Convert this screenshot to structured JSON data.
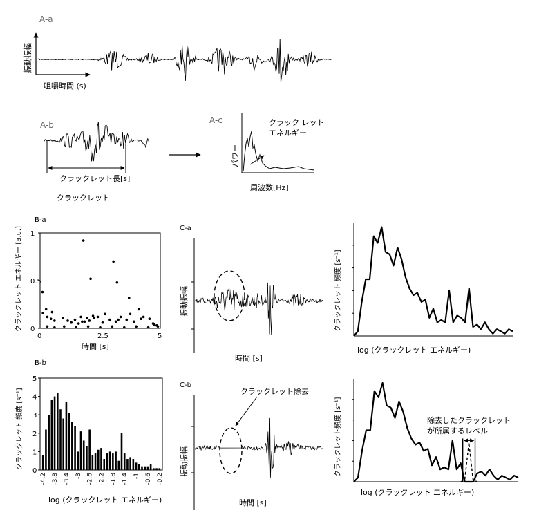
{
  "panels": {
    "Aa": {
      "label": "A-a",
      "ylabel": "振動振幅",
      "xlabel": "咀嚼時間 (s)"
    },
    "Ab": {
      "label": "A-b",
      "length_label": "クラックレット長[s]",
      "caption": "クラックレット"
    },
    "Ac": {
      "label": "A-c",
      "ylabel": "パワー",
      "xlabel": "周波数[Hz]",
      "annotation_line1": "クラック レット",
      "annotation_line2": "エネルギー"
    },
    "Ba": {
      "label": "B-a",
      "ylabel": "クラックレット エネルギー [a.u.]",
      "xlabel": "時間 [s]"
    },
    "Bb": {
      "label": "B-b",
      "ylabel": "クラックレット 頻度 [s⁻¹]",
      "xlabel": "log (クラックレット エネルギー)"
    },
    "Ca": {
      "label": "C-a",
      "ylabel": "振動振幅",
      "xlabel": "時間 [s]"
    },
    "Cb": {
      "label": "C-b",
      "ylabel": "振動振幅",
      "xlabel": "時間 [s]",
      "annotation": "クラックレット除去"
    },
    "Da": {
      "ylabel": "クラックレット 頻度 [s⁻¹]",
      "xlabel": "log (クラックレット エネルギー)"
    },
    "Db": {
      "ylabel": "クラックレット頻度 [s⁻¹]",
      "xlabel": "log (クラックレット エネルギー)",
      "annotation_line1": "除去したクラックレット",
      "annotation_line2": "が所属するレベル"
    }
  },
  "chart_data": [
    {
      "id": "B-a",
      "type": "scatter",
      "xlabel": "時間 [s]",
      "ylabel": "クラックレット エネルギー [a.u.]",
      "xlim": [
        0,
        5
      ],
      "ylim": [
        0,
        1
      ],
      "xticks": [
        "0",
        "2.5",
        "5"
      ],
      "yticks": [
        "0",
        "0.5",
        "1"
      ],
      "points": [
        [
          0.1,
          0.38
        ],
        [
          0.12,
          0.16
        ],
        [
          0.25,
          0.2
        ],
        [
          0.3,
          0.12
        ],
        [
          0.45,
          0.1
        ],
        [
          0.5,
          0.17
        ],
        [
          0.6,
          0.08
        ],
        [
          0.95,
          0.11
        ],
        [
          1.15,
          0.08
        ],
        [
          1.3,
          0.06
        ],
        [
          1.45,
          0.09
        ],
        [
          1.6,
          0.05
        ],
        [
          1.7,
          0.12
        ],
        [
          1.85,
          0.07
        ],
        [
          1.95,
          0.11
        ],
        [
          2.05,
          0.08
        ],
        [
          2.2,
          0.13
        ],
        [
          1.75,
          0.07
        ],
        [
          1.8,
          0.92
        ],
        [
          2.1,
          0.52
        ],
        [
          2.25,
          0.11
        ],
        [
          2.4,
          0.12
        ],
        [
          2.6,
          0.06
        ],
        [
          2.7,
          0.15
        ],
        [
          2.9,
          0.09
        ],
        [
          3.05,
          0.7
        ],
        [
          3.15,
          0.07
        ],
        [
          3.2,
          0.48
        ],
        [
          3.25,
          0.09
        ],
        [
          3.35,
          0.12
        ],
        [
          3.6,
          0.09
        ],
        [
          3.7,
          0.32
        ],
        [
          3.75,
          0.15
        ],
        [
          3.9,
          0.07
        ],
        [
          4.1,
          0.2
        ],
        [
          4.2,
          0.1
        ],
        [
          4.3,
          0.12
        ],
        [
          4.55,
          0.1
        ],
        [
          4.7,
          0.05
        ],
        [
          4.75,
          0.04
        ],
        [
          4.85,
          0.03
        ],
        [
          4.9,
          0.02
        ],
        [
          0.3,
          0.02
        ],
        [
          0.6,
          0.01
        ],
        [
          1.0,
          0.02
        ],
        [
          1.5,
          0.01
        ],
        [
          2.0,
          0.02
        ],
        [
          2.5,
          0.01
        ],
        [
          3.0,
          0.02
        ],
        [
          3.5,
          0.01
        ],
        [
          4.0,
          0.02
        ],
        [
          4.5,
          0.01
        ]
      ]
    },
    {
      "id": "B-b",
      "type": "bar",
      "xlabel": "log (クラックレット エネルギー)",
      "ylabel": "クラックレット 頻度 [s⁻¹]",
      "xlim": [
        -4.3,
        -0.1
      ],
      "ylim": [
        0,
        5
      ],
      "yticks": [
        "0",
        "1",
        "2",
        "3",
        "4",
        "5"
      ],
      "xticks": [
        "-4.2",
        "-3.8",
        "-3.4",
        "-3",
        "-2.6",
        "-2.2",
        "-1.8",
        "-1.4",
        "-1",
        "-0.6",
        "-0.2"
      ],
      "x": [
        -4.2,
        -4.1,
        -4.0,
        -3.9,
        -3.8,
        -3.7,
        -3.6,
        -3.5,
        -3.4,
        -3.3,
        -3.2,
        -3.1,
        -3.0,
        -2.9,
        -2.8,
        -2.7,
        -2.6,
        -2.5,
        -2.4,
        -2.3,
        -2.2,
        -2.1,
        -2.0,
        -1.9,
        -1.8,
        -1.7,
        -1.6,
        -1.5,
        -1.4,
        -1.3,
        -1.2,
        -1.1,
        -1.0,
        -0.9,
        -0.8,
        -0.7,
        -0.6,
        -0.5,
        -0.4,
        -0.3,
        -0.2
      ],
      "values": [
        0.8,
        2.2,
        3.0,
        3.8,
        4.0,
        4.2,
        3.3,
        2.8,
        3.7,
        3.1,
        2.6,
        2.4,
        1.0,
        2.1,
        1.6,
        1.3,
        2.2,
        0.8,
        0.9,
        1.1,
        1.2,
        0.6,
        0.9,
        1.0,
        0.9,
        1.0,
        0.5,
        2.0,
        0.9,
        0.6,
        0.7,
        0.6,
        0.4,
        0.3,
        0.2,
        0.2,
        0.2,
        0.3,
        0.1,
        0.1,
        0.1
      ]
    },
    {
      "id": "D-a",
      "type": "line",
      "xlabel": "log (クラックレット エネルギー)",
      "ylabel": "クラックレット 頻度 [s⁻¹]",
      "xlim": [
        0,
        40
      ],
      "ylim": [
        0,
        5
      ],
      "x": [
        0,
        1,
        2,
        3,
        4,
        5,
        6,
        7,
        8,
        9,
        10,
        11,
        12,
        13,
        14,
        15,
        16,
        17,
        18,
        19,
        20,
        21,
        22,
        23,
        24,
        25,
        26,
        27,
        28,
        29,
        30,
        31,
        32,
        33,
        34,
        35,
        36,
        37,
        38,
        39,
        40
      ],
      "values": [
        0,
        0.2,
        1.5,
        2.5,
        2.5,
        4.4,
        4.1,
        4.8,
        3.7,
        3.6,
        3.1,
        3.9,
        3.4,
        2.6,
        2.1,
        1.8,
        1.9,
        1.5,
        1.6,
        0.8,
        1.2,
        0.6,
        0.7,
        0.6,
        2.0,
        0.6,
        0.9,
        0.8,
        0.6,
        2.1,
        0.4,
        0.5,
        0.3,
        0.6,
        0.3,
        0.1,
        0.3,
        0.2,
        0.1,
        0.3,
        0.2
      ]
    },
    {
      "id": "D-b",
      "type": "line",
      "xlabel": "log (クラックレット エネルギー)",
      "ylabel": "クラックレット頻度 [s⁻¹]",
      "xlim": [
        0,
        40
      ],
      "ylim": [
        0,
        5
      ],
      "x": [
        0,
        1,
        2,
        3,
        4,
        5,
        6,
        7,
        8,
        9,
        10,
        11,
        12,
        13,
        14,
        15,
        16,
        17,
        18,
        19,
        20,
        21,
        22,
        23,
        24,
        25,
        26,
        27,
        28,
        29,
        30,
        31,
        32,
        33,
        34,
        35,
        36,
        37,
        38,
        39,
        40
      ],
      "values": [
        0,
        0.2,
        1.5,
        2.5,
        2.5,
        4.4,
        4.1,
        4.8,
        3.7,
        3.6,
        3.1,
        3.9,
        3.4,
        2.6,
        2.1,
        1.8,
        1.9,
        1.5,
        1.6,
        0.8,
        1.2,
        0.6,
        0.7,
        0.6,
        2.0,
        0.6,
        0.9,
        0.0,
        0.0,
        0.0,
        0.4,
        0.5,
        0.3,
        0.6,
        0.3,
        0.1,
        0.3,
        0.2,
        0.1,
        0.3,
        0.2
      ],
      "removed_level": [
        0,
        0,
        0,
        0,
        0,
        0,
        0,
        0,
        0,
        0,
        0,
        0,
        0,
        0,
        0,
        0,
        0,
        0,
        0,
        0,
        0,
        0,
        0,
        0,
        0,
        0,
        0,
        0.1,
        1.9,
        0.1,
        0,
        0,
        0,
        0,
        0,
        0,
        0,
        0,
        0,
        0,
        0
      ]
    }
  ]
}
